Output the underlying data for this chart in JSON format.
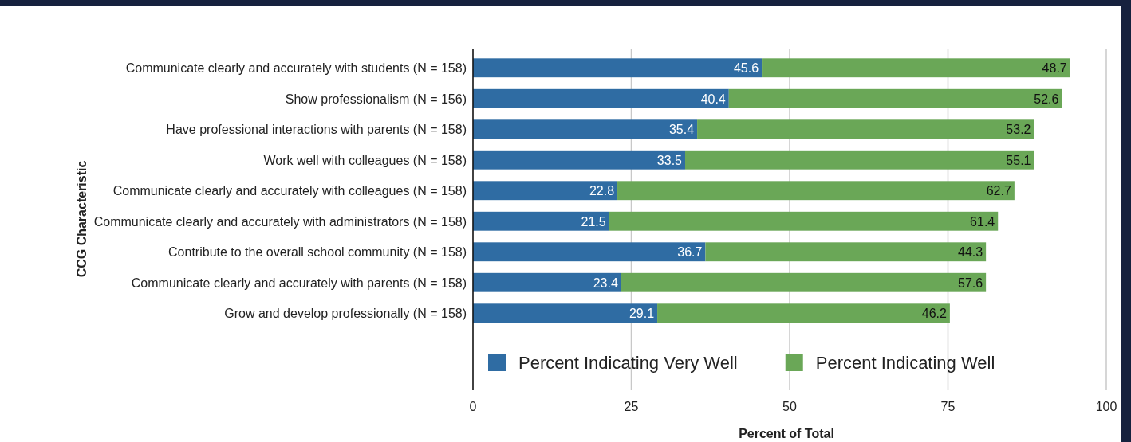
{
  "chart_data": {
    "type": "bar",
    "orientation": "horizontal",
    "stacked": true,
    "xlabel": "Percent of Total",
    "ylabel": "CCG Characteristic",
    "categories": [
      "Communicate clearly and accurately with students (N = 158)",
      "Show professionalism (N = 156)",
      "Have professional interactions with parents (N = 158)",
      "Work well with colleagues (N = 158)",
      "Communicate clearly and accurately with colleagues (N = 158)",
      "Communicate clearly and accurately with administrators (N = 158)",
      "Contribute to the overall school community (N = 158)",
      "Communicate clearly and accurately with parents (N = 158)",
      "Grow and develop professionally (N = 158)"
    ],
    "series": [
      {
        "name": "Percent Indicating Very Well",
        "color": "#2f6ca3",
        "values": [
          45.6,
          40.4,
          35.4,
          33.5,
          22.8,
          21.5,
          36.7,
          23.4,
          29.1
        ]
      },
      {
        "name": "Percent Indicating Well",
        "color": "#6aa757",
        "values": [
          48.7,
          52.6,
          53.2,
          55.1,
          62.7,
          61.4,
          44.3,
          57.6,
          46.2
        ]
      }
    ],
    "xlim": [
      0,
      100
    ],
    "xticks": [
      0,
      25,
      50,
      75,
      100
    ],
    "grid": "x",
    "legend": "bottom",
    "data_labels": true
  }
}
